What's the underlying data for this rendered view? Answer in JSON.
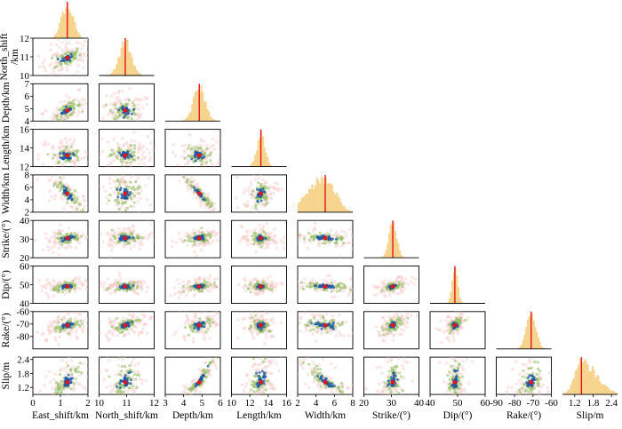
{
  "chart_data": {
    "type": "corner-plot",
    "description_of_marks": "Triangular matrix of posterior samples: diagonal = marginal histograms with red best-fit line; lower panels = 2D sample density clouds with red best-fit dot",
    "colors": {
      "histogram": "#f6d48e",
      "best_fit": "#e3151a",
      "density_outer": "#f2c6c3",
      "density_mid": "#8fbe5f",
      "density_core": "#1b56a5",
      "frame": "#000000"
    },
    "parameters": [
      {
        "name": "East_shift",
        "xlabel": "East_shift/km",
        "ylabel": "",
        "range": [
          0,
          2
        ],
        "ticks": [
          "0",
          "1",
          "2"
        ],
        "best": 1.25,
        "std": 0.22
      },
      {
        "name": "North_shift",
        "xlabel": "North_shift/km",
        "ylabel": "North_shift /km",
        "ylabel_lines": [
          "North_shift",
          "/km"
        ],
        "range": [
          10,
          12
        ],
        "ticks": [
          "10",
          "11",
          "12"
        ],
        "best": 10.95,
        "std": 0.22
      },
      {
        "name": "Depth",
        "xlabel": "Depth/km",
        "ylabel": "Depth/km",
        "range": [
          3,
          6
        ],
        "yrange": [
          4,
          7
        ],
        "ticks": [
          "3",
          "4",
          "5",
          "6"
        ],
        "yticks": [
          "4",
          "5",
          "6",
          "7"
        ],
        "best": 4.85,
        "std": 0.32
      },
      {
        "name": "Length",
        "xlabel": "Length/km",
        "ylabel": "Length/km",
        "range": [
          10,
          16
        ],
        "yrange": [
          12,
          16
        ],
        "ticks": [
          "10",
          "12",
          "14",
          "16"
        ],
        "yticks": [
          "12",
          "14",
          "16"
        ],
        "best": 13.2,
        "std": 0.45
      },
      {
        "name": "Width",
        "xlabel": "Width/km",
        "ylabel": "Width/km",
        "range": [
          2,
          8
        ],
        "ticks": [
          "2",
          "4",
          "6",
          "8"
        ],
        "best": 5.0,
        "std": 1.1
      },
      {
        "name": "Strike",
        "xlabel": "Strike/(°)",
        "ylabel": "Strike/(°)",
        "range": [
          20,
          40
        ],
        "ticks": [
          "20",
          "30",
          "40"
        ],
        "best": 30.5,
        "std": 1.4
      },
      {
        "name": "Dip",
        "xlabel": "Dip/(°)",
        "ylabel": "Dip/(°)",
        "range": [
          40,
          60
        ],
        "ticks": [
          "40",
          "50",
          "60"
        ],
        "best": 49,
        "std": 1.0
      },
      {
        "name": "Rake",
        "xlabel": "Rake/(°)",
        "ylabel": "Rake/(°)",
        "range": [
          -90,
          -60
        ],
        "ticks": [
          "-90",
          "-80",
          "-70",
          "-60"
        ],
        "yticks": [
          "-80",
          "-70",
          "-60"
        ],
        "best": -71,
        "std": 2.5
      },
      {
        "name": "Slip",
        "xlabel": "Slip/m",
        "ylabel": "Slip/m",
        "range": [
          0.8,
          2.6
        ],
        "yrange": [
          0.9,
          2.5
        ],
        "ticks": [
          "1.2",
          "1.8",
          "2.4"
        ],
        "yticks": [
          "1.2",
          "1.8",
          "2.4"
        ],
        "best": 1.42,
        "std": 0.22
      }
    ],
    "correlations": {
      "1-0": 0.45,
      "2-0": 0.7,
      "2-1": -0.1,
      "3-0": 0.0,
      "3-1": 0.1,
      "3-2": 0.05,
      "4-0": -0.85,
      "4-1": 0.0,
      "4-2": -0.95,
      "4-3": 0.3,
      "5-0": 0.3,
      "5-1": 0.3,
      "5-2": 0.3,
      "5-3": 0.0,
      "5-4": -0.3,
      "6-0": 0.3,
      "6-1": 0.2,
      "6-2": 0.2,
      "6-3": 0.0,
      "6-4": -0.3,
      "6-5": 0.5,
      "7-0": 0.5,
      "7-1": 0.5,
      "7-2": 0.4,
      "7-3": 0.0,
      "7-4": -0.2,
      "7-5": 0.5,
      "7-6": 0.4,
      "8-0": 0.6,
      "8-1": 0.3,
      "8-2": 0.95,
      "8-3": 0.4,
      "8-4": -0.9,
      "8-5": 0.3,
      "8-6": 0.2,
      "8-7": 0.3
    }
  }
}
